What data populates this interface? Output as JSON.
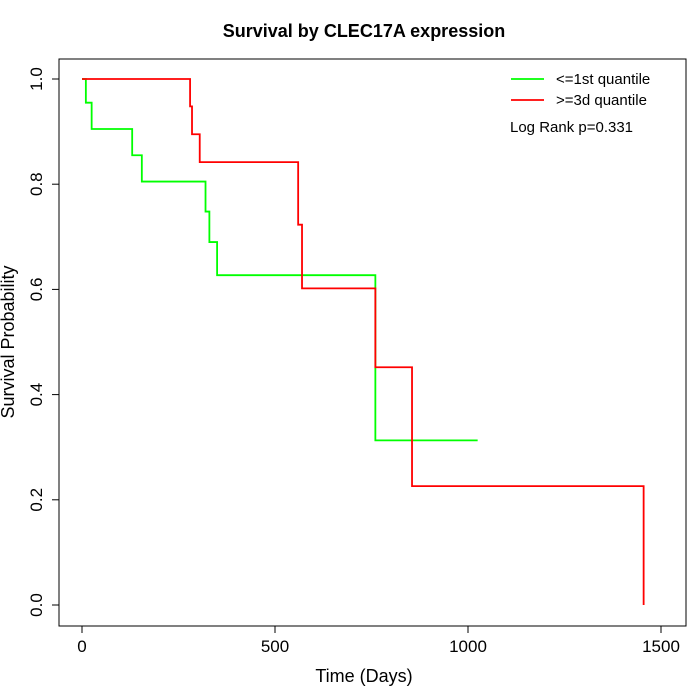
{
  "chart_data": {
    "type": "line",
    "step": true,
    "title": "Survival by CLEC17A expression",
    "xlabel": "Time (Days)",
    "ylabel": "Survival Probability",
    "xlim": [
      0,
      1500
    ],
    "ylim": [
      0,
      1
    ],
    "xticks": [
      0,
      500,
      1000,
      1500
    ],
    "yticks": [
      0.0,
      0.2,
      0.4,
      0.6,
      0.8,
      1.0
    ],
    "xtick_labels": [
      "0",
      "500",
      "1000",
      "1500"
    ],
    "ytick_labels": [
      "0.0",
      "0.2",
      "0.4",
      "0.6",
      "0.8",
      "1.0"
    ],
    "grid": false,
    "legend_position": "top-right",
    "annotation": "Log Rank p=0.331",
    "series": [
      {
        "name": "<=1st quantile",
        "color": "#00ff00",
        "x": [
          0,
          10,
          25,
          130,
          155,
          320,
          330,
          350,
          760,
          1025
        ],
        "y": [
          1.0,
          0.955,
          0.905,
          0.855,
          0.805,
          0.748,
          0.69,
          0.627,
          0.313,
          0.313
        ]
      },
      {
        "name": ">=3d quantile",
        "color": "#ff0000",
        "x": [
          0,
          280,
          285,
          305,
          560,
          570,
          760,
          855,
          1455,
          1455
        ],
        "y": [
          1.0,
          0.948,
          0.895,
          0.842,
          0.723,
          0.602,
          0.452,
          0.226,
          0.226,
          0.0
        ]
      }
    ]
  }
}
